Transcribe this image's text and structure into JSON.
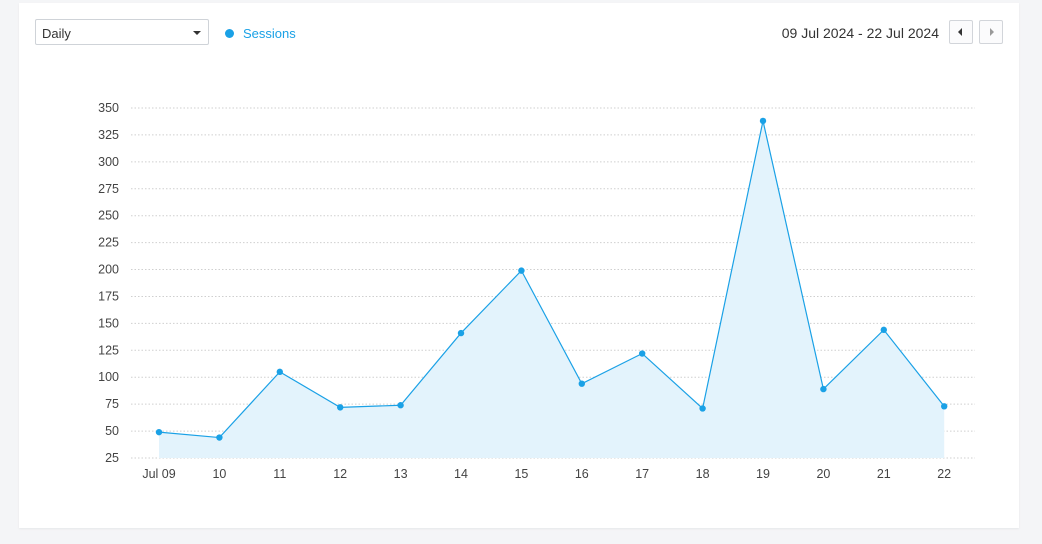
{
  "controls": {
    "interval_select": {
      "value": "Daily"
    },
    "legend": {
      "label": "Sessions",
      "color": "#1aa1e6"
    },
    "date_range": "09 Jul 2024 - 22 Jul 2024"
  },
  "colors": {
    "line": "#1aa1e6",
    "area": "#e3f3fc",
    "grid": "#cfcfcf"
  },
  "chart_data": {
    "type": "area",
    "title": "",
    "xlabel": "",
    "ylabel": "",
    "categories": [
      "Jul 09",
      "10",
      "11",
      "12",
      "13",
      "14",
      "15",
      "16",
      "17",
      "18",
      "19",
      "20",
      "21",
      "22"
    ],
    "series": [
      {
        "name": "Sessions",
        "values": [
          49,
          44,
          105,
          72,
          74,
          141,
          199,
          94,
          122,
          71,
          338,
          89,
          144,
          73
        ]
      }
    ],
    "yticks": [
      25,
      50,
      75,
      100,
      125,
      150,
      175,
      200,
      225,
      250,
      275,
      300,
      325,
      350
    ],
    "ylim": [
      25,
      350
    ],
    "grid": true,
    "legend_position": "top-left"
  }
}
